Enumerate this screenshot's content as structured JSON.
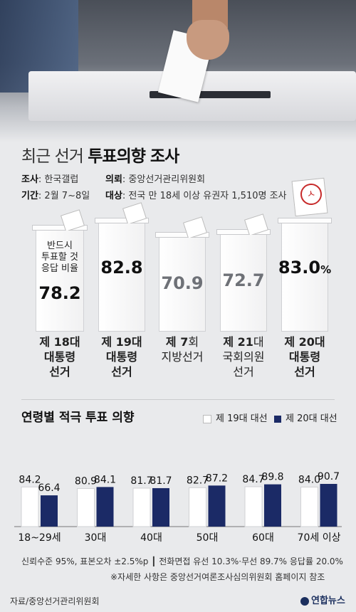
{
  "title_light": "최근 선거",
  "title_bold": "투표의향 조사",
  "meta": {
    "survey_label": "조사",
    "survey_value": ": 한국갤럽",
    "client_label": "의뢰",
    "client_value": ": 중앙선거관리위원회",
    "period_label": "기간",
    "period_value": ": 2월 7~8일",
    "target_label": "대상",
    "target_value": ": 전국 만 18세 이상 유권자 1,510명 조사"
  },
  "top_note": [
    "반드시",
    "투표할 것",
    "응답 비율"
  ],
  "elections": [
    {
      "value": "78.2",
      "unit": "",
      "line1_bold": "제 18",
      "line1_rest": "대",
      "line2": "대통령",
      "line3": "선거",
      "bold_rest": true
    },
    {
      "value": "82.8",
      "unit": "",
      "line1_bold": "제 19",
      "line1_rest": "대",
      "line2": "대통령",
      "line3": "선거",
      "bold_rest": true
    },
    {
      "value": "70.9",
      "unit": "",
      "line1_bold": "제 7",
      "line1_rest": "회",
      "line2": "지방선거",
      "line3": "",
      "bold_rest": false
    },
    {
      "value": "72.7",
      "unit": "",
      "line1_bold": "제 21",
      "line1_rest": "대",
      "line2": "국회의원",
      "line3": "선거",
      "bold_rest": false
    },
    {
      "value": "83.0",
      "unit": "%",
      "line1_bold": "제 20",
      "line1_rest": "대",
      "line2": "대통령",
      "line3": "선거",
      "bold_rest": true
    }
  ],
  "stamp_text": "ㅅ",
  "chart_title": "연령별 적극 투표 의향",
  "colors": {
    "series1": "#ffffff",
    "series2": "#1b2a66",
    "value_grey": "#6e7177"
  },
  "chart_data": {
    "type": "bar",
    "title": "연령별 적극 투표 의향",
    "categories": [
      "18~29세",
      "30대",
      "40대",
      "50대",
      "60대",
      "70세 이상"
    ],
    "series": [
      {
        "name": "제 19대 대선",
        "values": [
          84.2,
          80.9,
          81.7,
          82.7,
          84.7,
          84.0
        ]
      },
      {
        "name": "제 20대 대선",
        "values": [
          66.4,
          84.1,
          81.7,
          87.2,
          89.8,
          90.7
        ]
      }
    ],
    "ylim": [
      0,
      100
    ],
    "legend": "top-right",
    "grid": false
  },
  "footer": {
    "line1": "신뢰수준 95%, 표본오차 ±2.5%p ┃ 전화면접 유선 10.3%·무선 89.7% 응답률 20.0%",
    "line2": "※자세한 사항은 중앙선거여론조사심의위원회 홈페이지 참조",
    "source": "자료/중앙선거관리위원회",
    "logo": "연합뉴스"
  }
}
